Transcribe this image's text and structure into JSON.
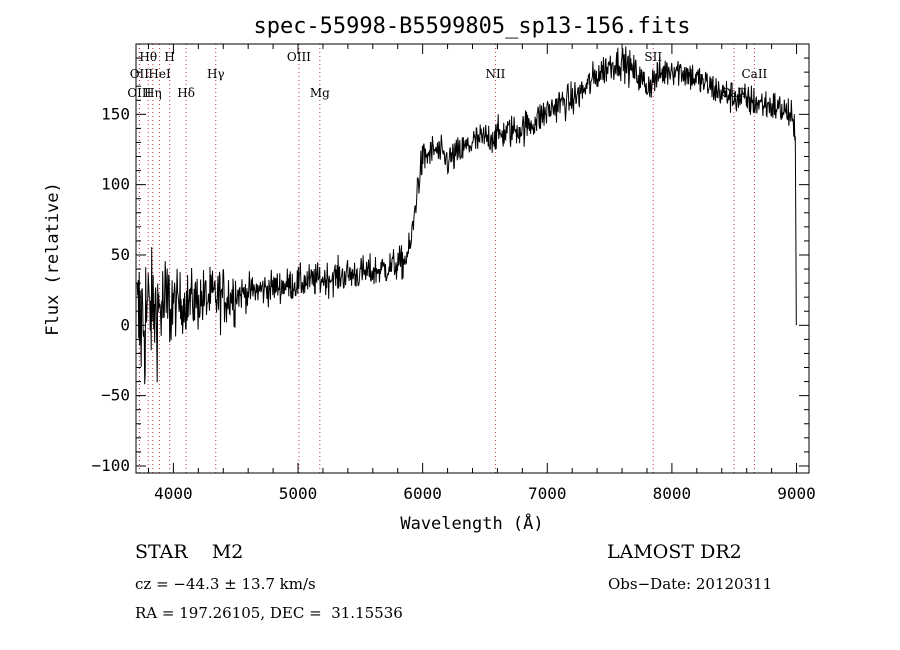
{
  "chart_data": {
    "type": "line",
    "title": "spec-55998-B5599805_sp13-156.fits",
    "xlabel": "Wavelength (Å)",
    "ylabel": "Flux (relative)",
    "xlim": [
      3700,
      9100
    ],
    "ylim": [
      -105,
      200
    ],
    "x_ticks": [
      4000,
      5000,
      6000,
      7000,
      8000,
      9000
    ],
    "y_ticks": [
      -100,
      -50,
      0,
      50,
      100,
      150
    ],
    "grid": false,
    "line_color": "#000000",
    "marker_color": "#cc3333",
    "spectrum_knots": {
      "x": [
        3710,
        3760,
        3800,
        3900,
        4000,
        4200,
        4500,
        4800,
        5000,
        5200,
        5400,
        5600,
        5750,
        5850,
        5900,
        5930,
        5960,
        6000,
        6100,
        6200,
        6300,
        6400,
        6500,
        6600,
        6700,
        6800,
        6900,
        7000,
        7100,
        7200,
        7300,
        7400,
        7500,
        7600,
        7700,
        7800,
        7900,
        8000,
        8100,
        8200,
        8300,
        8400,
        8500,
        8600,
        8700,
        8800,
        8900,
        8960,
        8990
      ],
      "y": [
        0,
        5,
        10,
        12,
        15,
        18,
        22,
        27,
        30,
        33,
        36,
        38,
        42,
        45,
        55,
        75,
        100,
        118,
        125,
        117,
        123,
        130,
        133,
        135,
        138,
        140,
        145,
        152,
        158,
        160,
        168,
        178,
        185,
        188,
        180,
        170,
        178,
        183,
        180,
        175,
        170,
        165,
        162,
        160,
        158,
        156,
        153,
        148,
        130
      ]
    },
    "line_markers": [
      {
        "label": "Hθ",
        "x": 3798,
        "row": 0
      },
      {
        "label": "H",
        "x": 3970,
        "row": 0
      },
      {
        "label": "OIII",
        "x": 5007,
        "row": 0
      },
      {
        "label": "SII",
        "x": 7850,
        "row": 0
      },
      {
        "label": "OII",
        "x": 3727,
        "row": 1
      },
      {
        "label": "HeI",
        "x": 3889,
        "row": 1
      },
      {
        "label": "Hγ",
        "x": 4340,
        "row": 1
      },
      {
        "label": "NII",
        "x": 6584,
        "row": 1
      },
      {
        "label": "CaII",
        "x": 8662,
        "row": 1
      },
      {
        "label": "OIII",
        "x": 3727,
        "row": 2
      },
      {
        "label": "Hη",
        "x": 3835,
        "row": 2
      },
      {
        "label": "Hδ",
        "x": 4102,
        "row": 2
      },
      {
        "label": "Mg",
        "x": 5175,
        "row": 2
      },
      {
        "label": "CaII",
        "x": 8498,
        "row": 2
      }
    ]
  },
  "info": {
    "object_class": "STAR    M2",
    "survey": "LAMOST DR2",
    "cz": "cz = −44.3 ± 13.7 km/s",
    "obs_date": "Obs−Date: 20120311",
    "coords": "RA = 197.26105, DEC =  31.15536"
  }
}
